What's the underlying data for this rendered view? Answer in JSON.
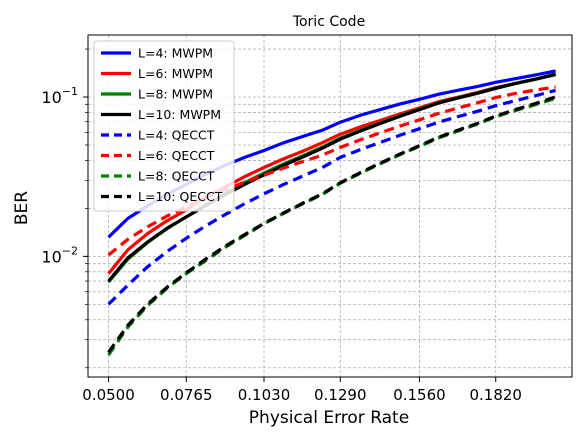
{
  "chart_data": {
    "type": "line",
    "title": "Toric Code",
    "xlabel": "Physical Error Rate",
    "ylabel": "BER",
    "xlim": [
      0.043,
      0.208
    ],
    "ylim": [
      0.00175,
      0.245
    ],
    "yscale": "log",
    "grid": true,
    "legend_position": "top-left",
    "x_ticks": [
      {
        "value": 0.05,
        "label": "0.0500"
      },
      {
        "value": 0.0765,
        "label": "0.0765"
      },
      {
        "value": 0.103,
        "label": "0.1030"
      },
      {
        "value": 0.129,
        "label": "0.1290"
      },
      {
        "value": 0.156,
        "label": "0.1560"
      },
      {
        "value": 0.182,
        "label": "0.1820"
      }
    ],
    "y_ticks": [
      {
        "value": 0.01,
        "base": "10",
        "exp": "−2"
      },
      {
        "value": 0.1,
        "base": "10",
        "exp": "−1"
      }
    ],
    "x": [
      0.05,
      0.0566,
      0.0633,
      0.0699,
      0.0765,
      0.0831,
      0.0898,
      0.0964,
      0.103,
      0.1096,
      0.1163,
      0.1229,
      0.129,
      0.1361,
      0.1428,
      0.1494,
      0.156,
      0.1626,
      0.1693,
      0.1759,
      0.182,
      0.1891,
      0.1958,
      0.2024
    ],
    "series": [
      {
        "name": "L=4: MWPM",
        "color": "#0000ff",
        "dash": "solid",
        "values": [
          0.0132,
          0.0173,
          0.0207,
          0.0245,
          0.0283,
          0.0328,
          0.0373,
          0.0418,
          0.0462,
          0.0516,
          0.0566,
          0.0619,
          0.0695,
          0.0771,
          0.0836,
          0.0905,
          0.0967,
          0.1041,
          0.1103,
          0.1166,
          0.1237,
          0.1309,
          0.1379,
          0.1456
        ]
      },
      {
        "name": "L=6: MWPM",
        "color": "#ff0000",
        "dash": "solid",
        "values": [
          0.0078,
          0.011,
          0.0139,
          0.0167,
          0.0196,
          0.0235,
          0.0273,
          0.0316,
          0.0361,
          0.0409,
          0.0458,
          0.0517,
          0.0584,
          0.0652,
          0.0714,
          0.0783,
          0.0855,
          0.0935,
          0.1,
          0.107,
          0.1146,
          0.1223,
          0.1297,
          0.1383
        ]
      },
      {
        "name": "L=8: MWPM",
        "color": "#008000",
        "dash": "solid",
        "values": [
          0.0069,
          0.0096,
          0.0122,
          0.0149,
          0.0177,
          0.021,
          0.0248,
          0.029,
          0.0333,
          0.038,
          0.0428,
          0.0486,
          0.0552,
          0.0622,
          0.069,
          0.0765,
          0.084,
          0.0921,
          0.099,
          0.1061,
          0.1138,
          0.1222,
          0.13,
          0.1392
        ]
      },
      {
        "name": "L=10: MWPM",
        "color": "#000000",
        "dash": "solid",
        "values": [
          0.007,
          0.0098,
          0.0123,
          0.015,
          0.0177,
          0.0208,
          0.0244,
          0.0283,
          0.0325,
          0.0372,
          0.0421,
          0.0477,
          0.0544,
          0.0614,
          0.0683,
          0.0757,
          0.0834,
          0.0917,
          0.0987,
          0.1057,
          0.1133,
          0.1219,
          0.1296,
          0.1384
        ]
      },
      {
        "name": "L=4: QECCT",
        "color": "#0000ff",
        "dash": "dashed",
        "values": [
          0.005,
          0.0066,
          0.0086,
          0.0107,
          0.013,
          0.0155,
          0.0183,
          0.0214,
          0.0247,
          0.0282,
          0.032,
          0.0361,
          0.0418,
          0.047,
          0.052,
          0.0576,
          0.0633,
          0.0696,
          0.0755,
          0.0815,
          0.0882,
          0.0952,
          0.1022,
          0.1101
        ]
      },
      {
        "name": "L=6: QECCT",
        "color": "#ff0000",
        "dash": "dashed",
        "values": [
          0.0102,
          0.0128,
          0.0153,
          0.0179,
          0.0205,
          0.0233,
          0.0262,
          0.0292,
          0.0323,
          0.0358,
          0.0394,
          0.0432,
          0.0483,
          0.0541,
          0.0597,
          0.0658,
          0.072,
          0.079,
          0.0855,
          0.0921,
          0.0991,
          0.1057,
          0.1109,
          0.1155
        ]
      },
      {
        "name": "L=8: QECCT",
        "color": "#008000",
        "dash": "dashed",
        "values": [
          0.0024,
          0.0036,
          0.0049,
          0.0063,
          0.0078,
          0.0094,
          0.0114,
          0.0135,
          0.016,
          0.0186,
          0.0214,
          0.0245,
          0.0288,
          0.0334,
          0.0382,
          0.0435,
          0.049,
          0.0554,
          0.0614,
          0.0678,
          0.0751,
          0.0826,
          0.0897,
          0.0981
        ]
      },
      {
        "name": "L=10: QECCT",
        "color": "#000000",
        "dash": "dashed",
        "values": [
          0.0025,
          0.0037,
          0.005,
          0.0064,
          0.0079,
          0.0096,
          0.0116,
          0.0137,
          0.0161,
          0.0187,
          0.0216,
          0.0247,
          0.029,
          0.0337,
          0.0386,
          0.0439,
          0.0495,
          0.056,
          0.0621,
          0.0685,
          0.076,
          0.0839,
          0.0913,
          0.1001
        ]
      }
    ]
  }
}
